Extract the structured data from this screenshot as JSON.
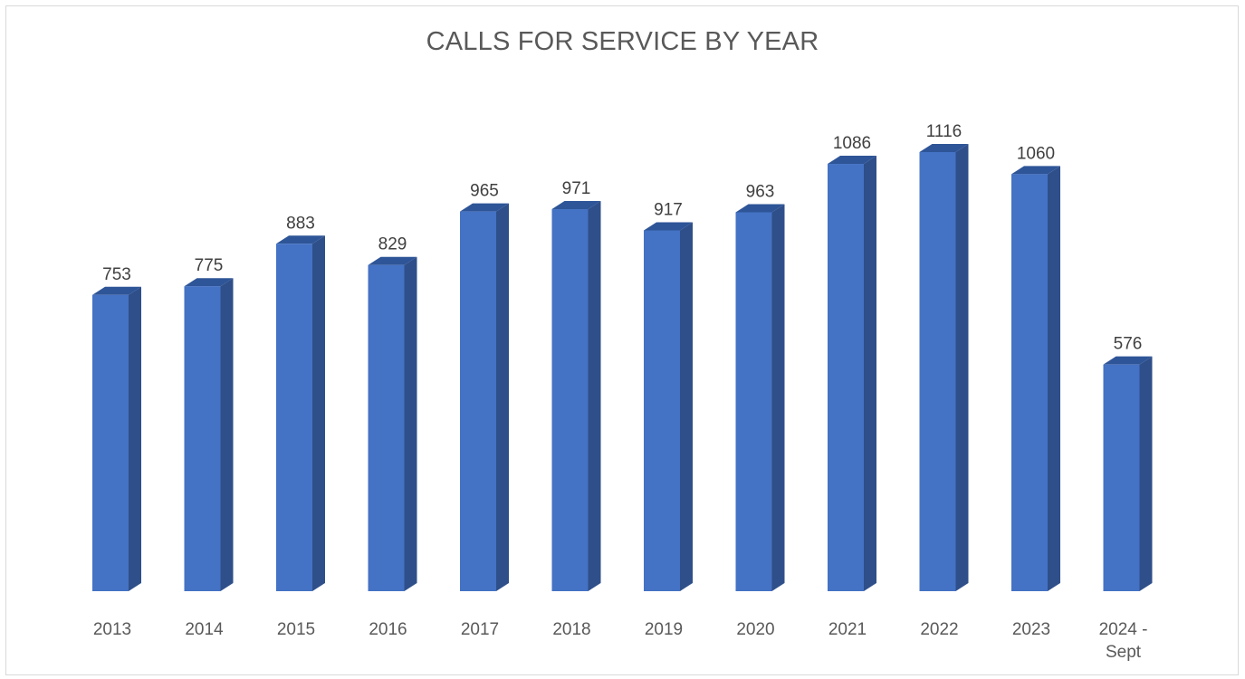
{
  "chart_data": {
    "type": "bar",
    "title": "CALLS FOR SERVICE BY YEAR",
    "categories": [
      "2013",
      "2014",
      "2015",
      "2016",
      "2017",
      "2018",
      "2019",
      "2020",
      "2021",
      "2022",
      "2023",
      "2024 - Sept"
    ],
    "category_lines": [
      [
        "2013"
      ],
      [
        "2014"
      ],
      [
        "2015"
      ],
      [
        "2016"
      ],
      [
        "2017"
      ],
      [
        "2018"
      ],
      [
        "2019"
      ],
      [
        "2020"
      ],
      [
        "2021"
      ],
      [
        "2022"
      ],
      [
        "2023"
      ],
      [
        "2024 -",
        "Sept"
      ]
    ],
    "values": [
      753,
      775,
      883,
      829,
      965,
      971,
      917,
      963,
      1086,
      1116,
      1060,
      576
    ],
    "ylim": [
      0,
      1116
    ],
    "grid": false,
    "legend": "none",
    "colors": {
      "bar_front": "#4472c4",
      "bar_side": "#2f4f8a",
      "bar_top": "#2e5597"
    }
  }
}
